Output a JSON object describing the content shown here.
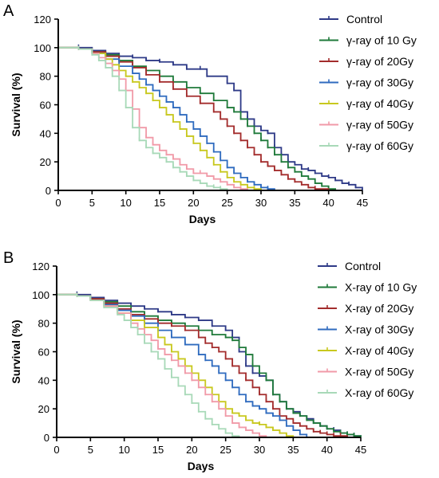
{
  "chart_data": [
    {
      "type": "line",
      "panel_label": "A",
      "xlabel": "Days",
      "ylabel": "Survival (%)",
      "xlim": [
        0,
        45
      ],
      "ylim": [
        0,
        120
      ],
      "xticks": [
        0,
        5,
        10,
        15,
        20,
        25,
        30,
        35,
        40,
        45
      ],
      "yticks": [
        0,
        20,
        40,
        60,
        80,
        100,
        120
      ],
      "legend_position": "right",
      "series": [
        {
          "name": "Control",
          "color": "#2e3a87",
          "x": [
            0,
            3,
            5,
            7,
            9,
            11,
            13,
            15,
            17,
            19,
            21,
            22,
            25,
            26,
            27,
            28,
            29,
            30,
            31,
            32,
            33,
            34,
            35,
            36,
            37,
            38,
            39,
            40,
            41,
            42,
            43,
            44,
            45
          ],
          "y": [
            100,
            100,
            98,
            96,
            94,
            93,
            91,
            90,
            88,
            85,
            85,
            80,
            75,
            70,
            55,
            50,
            45,
            42,
            40,
            30,
            25,
            20,
            18,
            15,
            14,
            12,
            10,
            9,
            7,
            5,
            4,
            2,
            0
          ]
        },
        {
          "name": "γ-ray of 10 Gy",
          "color": "#1f7a3a",
          "x": [
            0,
            3,
            5,
            7,
            9,
            11,
            13,
            15,
            17,
            19,
            21,
            23,
            25,
            26,
            27,
            28,
            29,
            30,
            31,
            32,
            33,
            34,
            35,
            36,
            37,
            38,
            39,
            40,
            41
          ],
          "y": [
            100,
            99,
            97,
            95,
            91,
            87,
            84,
            80,
            76,
            72,
            68,
            63,
            58,
            55,
            50,
            45,
            40,
            35,
            30,
            25,
            20,
            16,
            13,
            10,
            8,
            5,
            3,
            1,
            0
          ]
        },
        {
          "name": "γ-ray of 20Gy",
          "color": "#a32c2c",
          "x": [
            0,
            3,
            5,
            7,
            9,
            11,
            13,
            15,
            17,
            19,
            21,
            23,
            24,
            25,
            26,
            27,
            28,
            29,
            30,
            31,
            32,
            33,
            34,
            35,
            36,
            37,
            38,
            40
          ],
          "y": [
            100,
            99,
            97,
            94,
            90,
            86,
            81,
            76,
            71,
            66,
            61,
            55,
            50,
            45,
            40,
            35,
            30,
            25,
            20,
            17,
            14,
            11,
            8,
            6,
            4,
            2,
            1,
            0
          ]
        },
        {
          "name": "γ-ray of 30Gy",
          "color": "#2f6bbf",
          "x": [
            0,
            3,
            5,
            7,
            9,
            11,
            12,
            13,
            14,
            15,
            16,
            17,
            18,
            19,
            20,
            21,
            22,
            23,
            24,
            25,
            26,
            27,
            28,
            29,
            30,
            31,
            32
          ],
          "y": [
            100,
            99,
            96,
            92,
            87,
            82,
            78,
            74,
            70,
            66,
            62,
            58,
            53,
            48,
            43,
            38,
            33,
            27,
            21,
            16,
            12,
            9,
            6,
            4,
            2,
            1,
            0
          ]
        },
        {
          "name": "γ-ray of 40Gy",
          "color": "#c8c81e",
          "x": [
            0,
            3,
            5,
            7,
            8,
            9,
            10,
            11,
            12,
            13,
            14,
            15,
            16,
            17,
            18,
            19,
            20,
            21,
            22,
            23,
            24,
            25,
            26,
            27,
            28,
            29,
            30
          ],
          "y": [
            100,
            99,
            96,
            92,
            88,
            84,
            80,
            76,
            72,
            68,
            63,
            58,
            53,
            48,
            43,
            38,
            33,
            28,
            23,
            18,
            13,
            9,
            6,
            4,
            2,
            1,
            0
          ]
        },
        {
          "name": "γ-ray of 50Gy",
          "color": "#f19aa8",
          "x": [
            0,
            3,
            5,
            6,
            7,
            8,
            9,
            10,
            11,
            12,
            13,
            14,
            15,
            16,
            17,
            18,
            19,
            20,
            21,
            22,
            23,
            24,
            25,
            26,
            27,
            28
          ],
          "y": [
            100,
            99,
            96,
            93,
            89,
            84,
            78,
            70,
            57,
            44,
            37,
            32,
            28,
            25,
            22,
            18,
            15,
            12,
            12,
            10,
            8,
            6,
            4,
            2,
            1,
            0
          ]
        },
        {
          "name": "γ-ray of 60Gy",
          "color": "#a8d9b8",
          "x": [
            0,
            3,
            5,
            6,
            7,
            8,
            9,
            10,
            11,
            12,
            13,
            14,
            15,
            16,
            17,
            18,
            19,
            20,
            21,
            22,
            23,
            24,
            25
          ],
          "y": [
            100,
            99,
            95,
            91,
            86,
            80,
            70,
            58,
            44,
            35,
            30,
            26,
            23,
            20,
            16,
            13,
            10,
            7,
            5,
            3,
            2,
            1,
            0
          ]
        }
      ]
    },
    {
      "type": "line",
      "panel_label": "B",
      "xlabel": "Days",
      "ylabel": "Survival (%)",
      "xlim": [
        0,
        45
      ],
      "ylim": [
        0,
        120
      ],
      "xticks": [
        0,
        5,
        10,
        15,
        20,
        25,
        30,
        35,
        40,
        45
      ],
      "yticks": [
        0,
        20,
        40,
        60,
        80,
        100,
        120
      ],
      "legend_position": "right",
      "series": [
        {
          "name": "Control",
          "color": "#2e3a87",
          "x": [
            0,
            3,
            5,
            7,
            9,
            11,
            13,
            15,
            17,
            19,
            21,
            23,
            25,
            26,
            27,
            28,
            29,
            30,
            31,
            32,
            33,
            34,
            35,
            36,
            37,
            38,
            39,
            40,
            41,
            42,
            43,
            44,
            45
          ],
          "y": [
            100,
            100,
            98,
            96,
            94,
            92,
            90,
            88,
            86,
            84,
            82,
            78,
            75,
            70,
            60,
            50,
            45,
            43,
            40,
            30,
            25,
            20,
            18,
            15,
            13,
            10,
            8,
            6,
            5,
            3,
            2,
            1,
            0
          ]
        },
        {
          "name": "X-ray of 10 Gy",
          "color": "#1f7a3a",
          "x": [
            0,
            3,
            5,
            7,
            9,
            11,
            13,
            15,
            17,
            19,
            21,
            23,
            25,
            26,
            27,
            28,
            29,
            30,
            31,
            32,
            33,
            34,
            35,
            36,
            37,
            38,
            39,
            40,
            41,
            42,
            43,
            44,
            45
          ],
          "y": [
            100,
            99,
            97,
            95,
            92,
            88,
            85,
            82,
            80,
            78,
            75,
            72,
            70,
            68,
            63,
            58,
            50,
            45,
            40,
            30,
            25,
            20,
            17,
            15,
            12,
            10,
            8,
            6,
            4,
            3,
            2,
            1,
            0
          ]
        },
        {
          "name": "X-ray of 20Gy",
          "color": "#a32c2c",
          "x": [
            0,
            3,
            5,
            7,
            9,
            11,
            13,
            15,
            17,
            19,
            21,
            22,
            23,
            24,
            25,
            26,
            27,
            28,
            29,
            30,
            31,
            32,
            33,
            34,
            35,
            36,
            37,
            38,
            39,
            40,
            41,
            42,
            43
          ],
          "y": [
            100,
            99,
            97,
            94,
            90,
            86,
            83,
            80,
            78,
            75,
            70,
            66,
            63,
            60,
            55,
            50,
            45,
            40,
            35,
            30,
            25,
            20,
            15,
            13,
            10,
            8,
            6,
            4,
            3,
            2,
            1,
            1,
            0
          ]
        },
        {
          "name": "X-ray of 30Gy",
          "color": "#2f6bbf",
          "x": [
            0,
            3,
            5,
            7,
            9,
            11,
            13,
            15,
            17,
            19,
            21,
            22,
            23,
            24,
            25,
            26,
            27,
            28,
            29,
            30,
            31,
            32,
            33,
            34,
            35,
            36,
            37
          ],
          "y": [
            100,
            99,
            96,
            93,
            89,
            85,
            80,
            75,
            70,
            65,
            58,
            54,
            50,
            45,
            40,
            35,
            30,
            25,
            22,
            20,
            17,
            15,
            12,
            8,
            5,
            2,
            0
          ]
        },
        {
          "name": "X-ray of 40Gy",
          "color": "#c8c81e",
          "x": [
            0,
            3,
            5,
            7,
            9,
            11,
            13,
            15,
            16,
            17,
            18,
            19,
            20,
            21,
            22,
            23,
            24,
            25,
            26,
            27,
            28,
            29,
            30,
            31,
            32,
            33,
            34,
            35
          ],
          "y": [
            100,
            99,
            96,
            92,
            87,
            82,
            77,
            70,
            65,
            60,
            55,
            50,
            45,
            40,
            35,
            30,
            25,
            20,
            17,
            15,
            12,
            10,
            9,
            7,
            5,
            3,
            1,
            0
          ]
        },
        {
          "name": "X-ray of 50Gy",
          "color": "#f19aa8",
          "x": [
            0,
            3,
            5,
            7,
            9,
            11,
            12,
            13,
            14,
            15,
            16,
            17,
            18,
            19,
            20,
            21,
            22,
            23,
            24,
            25,
            26,
            27,
            28,
            29,
            30,
            31
          ],
          "y": [
            100,
            99,
            96,
            92,
            87,
            80,
            76,
            72,
            68,
            62,
            58,
            54,
            50,
            45,
            40,
            35,
            30,
            25,
            20,
            15,
            10,
            7,
            5,
            3,
            1,
            0
          ]
        },
        {
          "name": "X-ray of 60Gy",
          "color": "#a8d9b8",
          "x": [
            0,
            3,
            5,
            7,
            9,
            10,
            11,
            12,
            13,
            14,
            15,
            16,
            17,
            18,
            19,
            20,
            21,
            22,
            23,
            24,
            25,
            26,
            27
          ],
          "y": [
            100,
            99,
            96,
            91,
            86,
            82,
            77,
            72,
            66,
            60,
            55,
            48,
            42,
            36,
            30,
            24,
            18,
            13,
            9,
            6,
            3,
            1,
            0
          ]
        }
      ]
    }
  ]
}
